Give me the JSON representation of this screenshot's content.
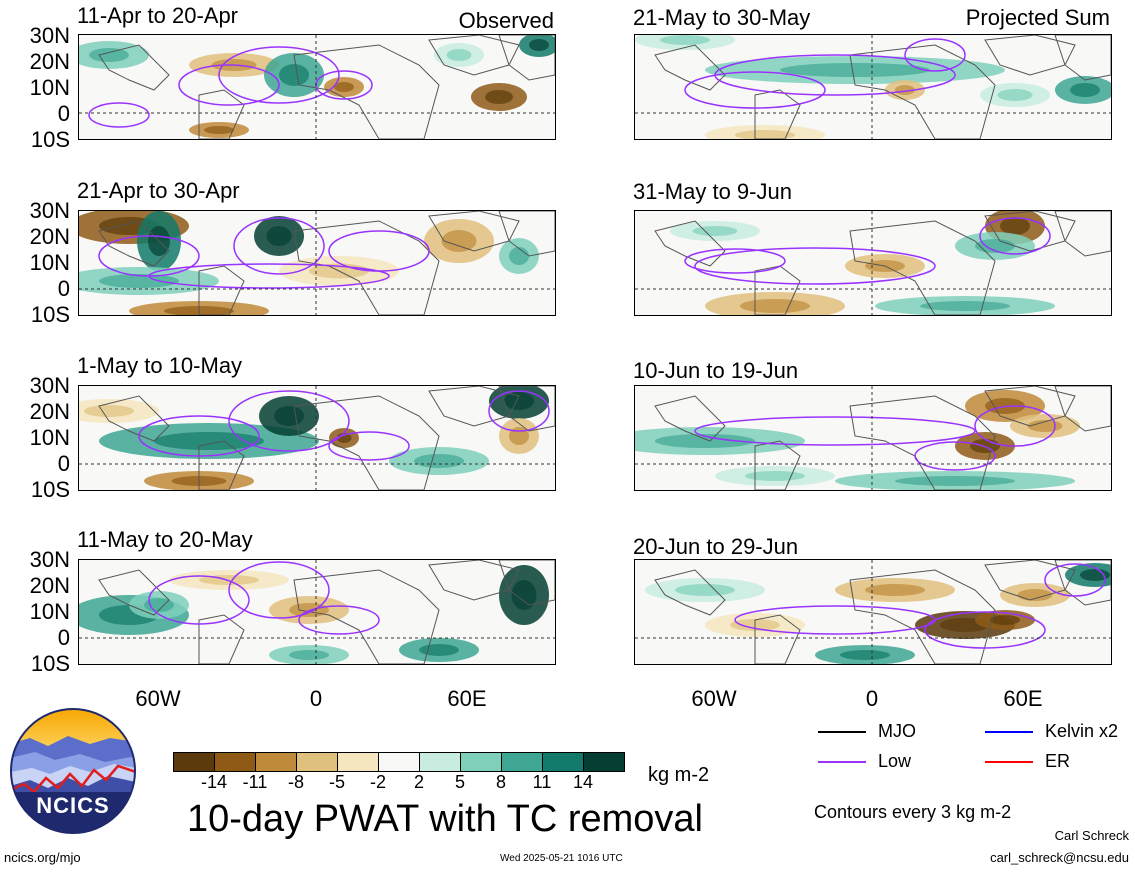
{
  "header": {
    "left_tag": "Observed",
    "right_tag": "Projected Sum"
  },
  "panels": [
    {
      "id": "p1",
      "period": "11-Apr to 20-Apr"
    },
    {
      "id": "p2",
      "period": "21-Apr to 30-Apr"
    },
    {
      "id": "p3",
      "period": "1-May to 10-May"
    },
    {
      "id": "p4",
      "period": "11-May to 20-May"
    },
    {
      "id": "p5",
      "period": "21-May to 30-May"
    },
    {
      "id": "p6",
      "period": "31-May to 9-Jun"
    },
    {
      "id": "p7",
      "period": "10-Jun to 19-Jun"
    },
    {
      "id": "p8",
      "period": "20-Jun to 29-Jun"
    }
  ],
  "lat_labels": [
    "30N",
    "20N",
    "10N",
    "0",
    "10S"
  ],
  "lon_labels": [
    "60W",
    "0",
    "60E"
  ],
  "colorbar": {
    "ticks": [
      "-14",
      "-11",
      "-8",
      "-5",
      "-2",
      "2",
      "5",
      "8",
      "11",
      "14"
    ],
    "colors": [
      "#5b3a0c",
      "#8e5a16",
      "#bf8a3a",
      "#e0c07d",
      "#f5e6c0",
      "#f8f8f6",
      "#c8ece0",
      "#7fd0bb",
      "#3ea693",
      "#127a6a",
      "#053f33"
    ],
    "unit": "kg m-2"
  },
  "title": "10-day PWAT with TC removal",
  "legend": {
    "items": [
      {
        "label": "MJO",
        "color": "#000000"
      },
      {
        "label": "Kelvin x2",
        "color": "#0000ff"
      },
      {
        "label": "Low",
        "color": "#9933ff"
      },
      {
        "label": "ER",
        "color": "#ff0000"
      }
    ],
    "contour_note": "Contours every 3 kg m-2"
  },
  "logo": {
    "text": "NCICS"
  },
  "footer": {
    "url": "ncics.org/mjo",
    "timestamp": "Wed 2025-05-21 1016 UTC",
    "author": "Carl Schreck",
    "email": "carl_schreck@ncsu.edu"
  }
}
